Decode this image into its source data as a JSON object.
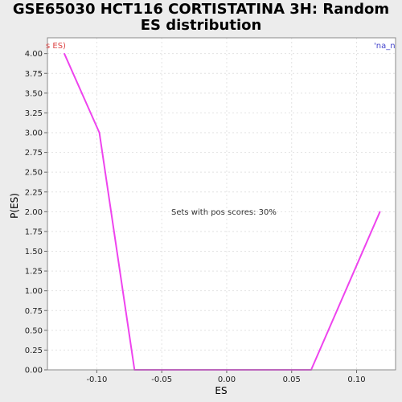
{
  "chart_data": {
    "type": "line",
    "title_line1": "GSE65030 HCT116 CORTISTATINA 3H: Random",
    "title_line2": "ES distribution",
    "xlabel": "ES",
    "ylabel": "P(ES)",
    "xlim": [
      -0.138,
      0.13
    ],
    "ylim": [
      0,
      4.2
    ],
    "x_ticks": [
      {
        "value": -0.1,
        "label": "-0.10"
      },
      {
        "value": -0.05,
        "label": "-0.05"
      },
      {
        "value": 0.0,
        "label": "0.00"
      },
      {
        "value": 0.05,
        "label": "0.05"
      },
      {
        "value": 0.1,
        "label": "0.10"
      }
    ],
    "y_ticks": [
      {
        "value": 0.0,
        "label": "0.00"
      },
      {
        "value": 0.25,
        "label": "0.25"
      },
      {
        "value": 0.5,
        "label": "0.50"
      },
      {
        "value": 0.75,
        "label": "0.75"
      },
      {
        "value": 1.0,
        "label": "1.00"
      },
      {
        "value": 1.25,
        "label": "1.25"
      },
      {
        "value": 1.5,
        "label": "1.50"
      },
      {
        "value": 1.75,
        "label": "1.75"
      },
      {
        "value": 2.0,
        "label": "2.00"
      },
      {
        "value": 2.25,
        "label": "2.25"
      },
      {
        "value": 2.5,
        "label": "2.50"
      },
      {
        "value": 2.75,
        "label": "2.75"
      },
      {
        "value": 3.0,
        "label": "3.00"
      },
      {
        "value": 3.25,
        "label": "3.25"
      },
      {
        "value": 3.5,
        "label": "3.50"
      },
      {
        "value": 3.75,
        "label": "3.75"
      },
      {
        "value": 4.0,
        "label": "4.00"
      }
    ],
    "grid": true,
    "series": [
      {
        "color": "#ee44ee",
        "x": [
          -0.125,
          -0.098,
          -0.071,
          0.065,
          0.118
        ],
        "y": [
          4.0,
          3.0,
          0.0,
          0.0,
          2.0
        ]
      }
    ],
    "annotations": {
      "center_text": "Sets with pos scores: 30%",
      "left_corner": "s ES)",
      "right_corner": "'na_n"
    },
    "colors": {
      "plot_bg": "#ffffff",
      "page_bg": "#ececec",
      "grid": "#e2e2e2",
      "left_corner_text": "#dd4444",
      "right_corner_text": "#4444cc"
    }
  }
}
